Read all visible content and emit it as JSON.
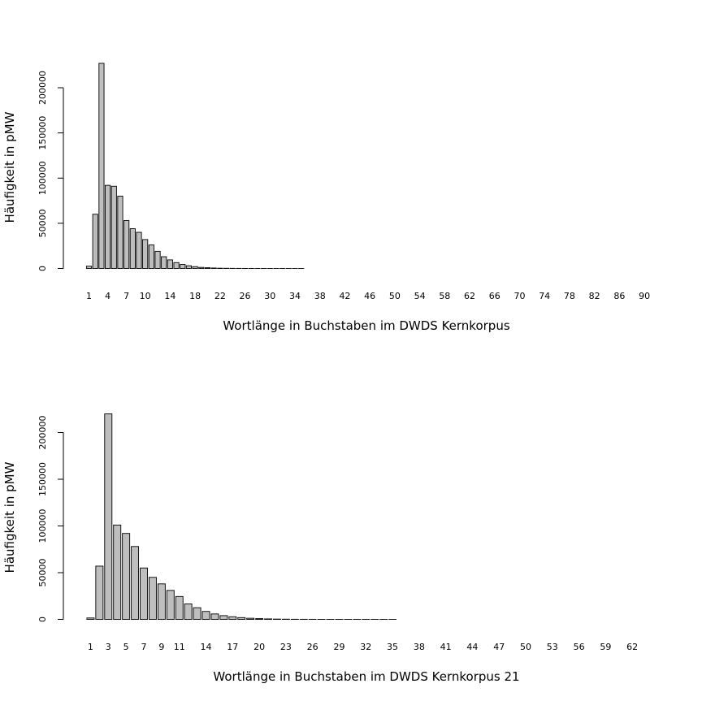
{
  "chart_data": [
    {
      "type": "bar",
      "ylabel": "Häufigkeit in pMW",
      "xlabel": "Wortlänge in Buchstaben im DWDS Kernkorpus",
      "ylim": [
        0,
        225000
      ],
      "yticks": [
        0,
        50000,
        100000,
        150000,
        200000
      ],
      "ytick_labels": [
        "0",
        "50000",
        "100000",
        "150000",
        "200000"
      ],
      "bar_color": "#bebebe",
      "categories": [
        1,
        2,
        3,
        4,
        5,
        6,
        7,
        8,
        9,
        10,
        11,
        12,
        13,
        14,
        15,
        16,
        17,
        18,
        19,
        20,
        21,
        22,
        23,
        24,
        25,
        26,
        27,
        28,
        29,
        30,
        31,
        32,
        33,
        34,
        35,
        36,
        37,
        38,
        39,
        40,
        41,
        42,
        43,
        44,
        45,
        46,
        47,
        48,
        49,
        50,
        51,
        52,
        53,
        54,
        55,
        56,
        57,
        58,
        59,
        60,
        61,
        62,
        63,
        64,
        65,
        66,
        67,
        68,
        69,
        70,
        71,
        72,
        73,
        74,
        75,
        76,
        77,
        78,
        79,
        80,
        81,
        82,
        83,
        84,
        85,
        86,
        87,
        88,
        89,
        90
      ],
      "shown_tick_labels": [
        "1",
        "4",
        "7",
        "10",
        "14",
        "18",
        "22",
        "26",
        "30",
        "34",
        "38",
        "42",
        "46",
        "50",
        "54",
        "58",
        "62",
        "66",
        "70",
        "74",
        "78",
        "82",
        "86",
        "90"
      ],
      "values": [
        2500,
        60000,
        227000,
        92000,
        91000,
        80000,
        53000,
        44000,
        40000,
        32000,
        26000,
        19000,
        13000,
        9500,
        6500,
        4500,
        3000,
        2000,
        1200,
        800,
        500,
        300,
        200,
        120,
        80,
        50,
        40,
        30,
        20,
        15,
        12,
        10,
        8,
        6,
        5,
        4,
        4,
        3,
        3,
        2,
        2,
        2,
        2,
        1,
        1,
        1,
        1,
        1,
        1,
        1,
        1,
        1,
        1,
        1,
        1,
        1,
        1,
        1,
        1,
        1,
        1,
        1,
        1,
        1,
        1,
        1,
        1,
        1,
        1,
        1,
        1,
        1,
        1,
        1,
        1,
        1,
        1,
        1,
        1,
        1,
        1,
        1,
        1,
        1,
        1,
        1,
        1,
        1,
        1,
        1
      ]
    },
    {
      "type": "bar",
      "ylabel": "Häufigkeit in pMW",
      "xlabel": "Wortlänge in Buchstaben im DWDS Kernkorpus 21",
      "ylim": [
        0,
        220000
      ],
      "yticks": [
        0,
        50000,
        100000,
        150000,
        200000
      ],
      "ytick_labels": [
        "0",
        "50000",
        "100000",
        "150000",
        "200000"
      ],
      "bar_color": "#bebebe",
      "categories": [
        1,
        2,
        3,
        4,
        5,
        6,
        7,
        8,
        9,
        10,
        11,
        12,
        13,
        14,
        15,
        16,
        17,
        18,
        19,
        20,
        21,
        22,
        23,
        24,
        25,
        26,
        27,
        28,
        29,
        30,
        31,
        32,
        33,
        34,
        35,
        36,
        37,
        38,
        39,
        40,
        41,
        42,
        43,
        44,
        45,
        46,
        47,
        48,
        49,
        50,
        51,
        52,
        53,
        54,
        55,
        56,
        57,
        58,
        59,
        60,
        61,
        62,
        63,
        64
      ],
      "shown_tick_labels": [
        "1",
        "3",
        "5",
        "7",
        "9",
        "11",
        "14",
        "17",
        "20",
        "23",
        "26",
        "29",
        "32",
        "35",
        "38",
        "41",
        "44",
        "47",
        "50",
        "53",
        "56",
        "59",
        "62"
      ],
      "values": [
        1500,
        57000,
        220000,
        101000,
        92000,
        78000,
        55000,
        45000,
        38000,
        31000,
        24500,
        16500,
        12500,
        8500,
        5800,
        4000,
        2800,
        1900,
        1200,
        800,
        500,
        300,
        200,
        120,
        80,
        50,
        40,
        30,
        20,
        15,
        12,
        10,
        8,
        6,
        5,
        4,
        4,
        3,
        3,
        2,
        2,
        2,
        2,
        1,
        1,
        1,
        1,
        1,
        1,
        1,
        1,
        1,
        1,
        1,
        1,
        1,
        1,
        1,
        1,
        1,
        1,
        1,
        1,
        1
      ]
    }
  ]
}
